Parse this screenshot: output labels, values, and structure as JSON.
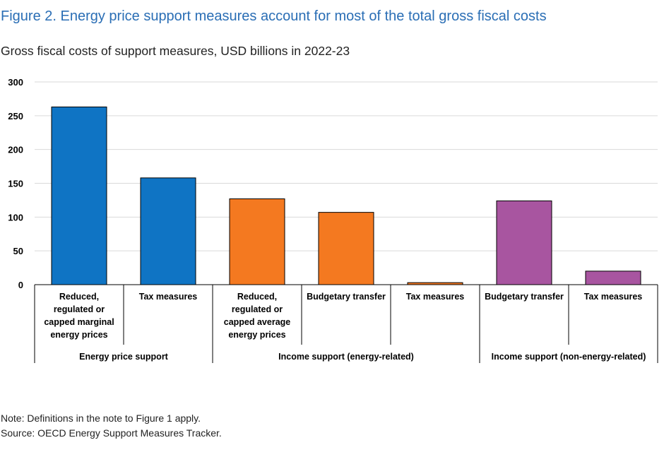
{
  "figure": {
    "title": "Figure 2. Energy price support measures account for most of the total gross fiscal costs",
    "subtitle": "Gross fiscal costs of support measures, USD billions in 2022-23",
    "note": "Note: Definitions in the note to Figure 1 apply.",
    "source": "Source: OECD Energy Support Measures Tracker."
  },
  "chart_data": {
    "type": "bar",
    "title": "",
    "xlabel": "",
    "ylabel": "",
    "ylim": [
      0,
      300
    ],
    "yticks": [
      0,
      50,
      100,
      150,
      200,
      250,
      300
    ],
    "grid": true,
    "legend": "none",
    "categories": [
      {
        "label": "Reduced, regulated or capped marginal energy prices",
        "lines": [
          "Reduced,",
          "regulated or",
          "capped marginal",
          "energy prices"
        ],
        "group": "Energy price support",
        "value": 263,
        "color": "#0f74c4"
      },
      {
        "label": "Tax measures",
        "lines": [
          "Tax measures"
        ],
        "group": "Energy price support",
        "value": 158,
        "color": "#0f74c4"
      },
      {
        "label": "Reduced, regulated or capped average energy prices",
        "lines": [
          "Reduced,",
          "regulated or",
          "capped average",
          "energy prices"
        ],
        "group": "Income support (energy-related)",
        "value": 127,
        "color": "#f47920"
      },
      {
        "label": "Budgetary transfer",
        "lines": [
          "Budgetary transfer"
        ],
        "group": "Income support (energy-related)",
        "value": 107,
        "color": "#f47920"
      },
      {
        "label": "Tax measures",
        "lines": [
          "Tax measures"
        ],
        "group": "Income support (energy-related)",
        "value": 3,
        "color": "#f47920"
      },
      {
        "label": "Budgetary transfer",
        "lines": [
          "Budgetary transfer"
        ],
        "group": "Income support (non-energy-related)",
        "value": 124,
        "color": "#a855a0"
      },
      {
        "label": "Tax measures",
        "lines": [
          "Tax measures"
        ],
        "group": "Income support (non-energy-related)",
        "value": 20,
        "color": "#a855a0"
      }
    ],
    "groups": [
      {
        "name": "Energy price support",
        "count": 2
      },
      {
        "name": "Income support (energy-related)",
        "count": 3
      },
      {
        "name": "Income support (non-energy-related)",
        "count": 2
      }
    ],
    "colors": {
      "energy_price_support": "#0f74c4",
      "income_support_energy": "#f47920",
      "income_support_non_energy": "#a855a0",
      "gridline": "#d9d9d9",
      "axis": "#000000"
    }
  }
}
